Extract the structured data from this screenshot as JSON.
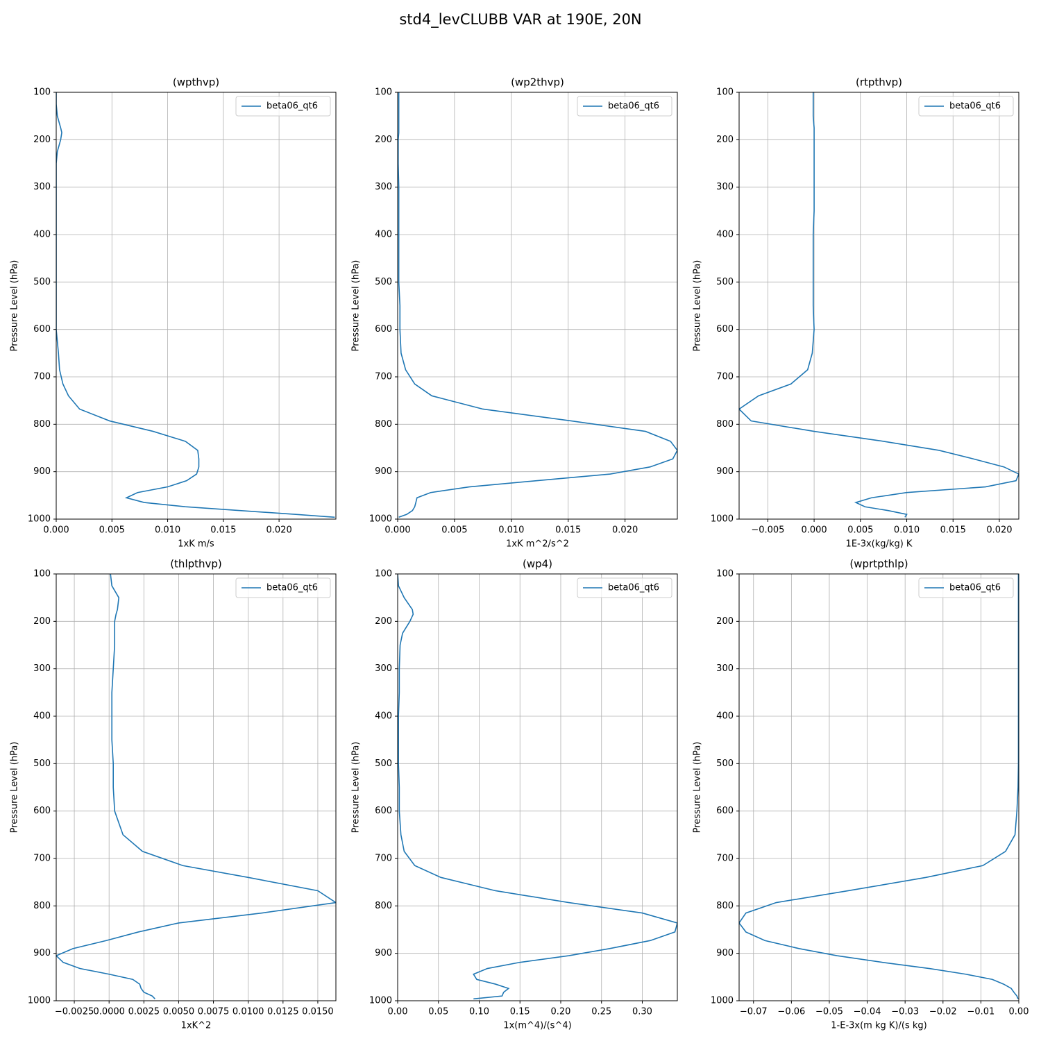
{
  "title": "std4_levCLUBB VAR at 190E, 20N",
  "chart_data": [
    {
      "type": "line",
      "title": "(wpthvp)",
      "x_label": "1xK m/s",
      "y_label": "Pressure Level (hPa)",
      "grid": true,
      "legend": "upper right",
      "y": [
        100,
        125,
        150,
        175,
        185,
        200,
        225,
        250,
        300,
        350,
        400,
        450,
        500,
        550,
        600,
        650,
        685,
        715,
        740,
        768,
        793,
        815,
        836,
        855,
        873,
        890,
        905,
        919,
        932,
        944,
        955,
        965,
        974,
        982,
        990,
        996
      ],
      "series": [
        {
          "name": "beta06_qt6",
          "color": "#1f77b4",
          "values": [
            0,
            0,
            0.0001,
            0.0004,
            0.0005,
            0.0004,
            0.0001,
            0,
            0,
            0,
            0,
            0,
            0,
            0,
            0,
            0.0002,
            0.0003,
            0.0006,
            0.0011,
            0.0021,
            0.0048,
            0.0087,
            0.0116,
            0.0127,
            0.0128,
            0.0128,
            0.0126,
            0.0117,
            0.01,
            0.0073,
            0.0063,
            0.0079,
            0.0116,
            0.0165,
            0.0215,
            0.025
          ]
        }
      ],
      "xlim": [
        0,
        0.0251
      ],
      "ylim": [
        1000,
        100
      ],
      "xticks": [
        {
          "value": 0,
          "label": "0.000"
        },
        {
          "value": 0.005,
          "label": "0.005"
        },
        {
          "value": 0.01,
          "label": "0.010"
        },
        {
          "value": 0.015,
          "label": "0.015"
        },
        {
          "value": 0.02,
          "label": "0.020"
        }
      ],
      "yticks": [
        100,
        200,
        300,
        400,
        500,
        600,
        700,
        800,
        900,
        1000
      ]
    },
    {
      "type": "line",
      "title": "(wp2thvp)",
      "x_label": "1xK m^2/s^2",
      "y_label": "Pressure Level (hPa)",
      "grid": true,
      "legend": "upper right",
      "y": [
        100,
        125,
        150,
        175,
        185,
        200,
        225,
        250,
        300,
        350,
        400,
        450,
        500,
        550,
        600,
        650,
        685,
        715,
        740,
        768,
        793,
        815,
        836,
        855,
        873,
        890,
        905,
        919,
        932,
        944,
        955,
        965,
        974,
        982,
        990,
        996
      ],
      "series": [
        {
          "name": "beta06_qt6",
          "color": "#1f77b4",
          "values": [
            0.0001,
            0.0001,
            0.0001,
            0.0001,
            0.0001,
            5e-05,
            5e-05,
            5e-05,
            0.0001,
            0.0001,
            0.0001,
            0.0001,
            0.0001,
            0.0002,
            0.0002,
            0.0003,
            0.0007,
            0.0015,
            0.003,
            0.0075,
            0.0153,
            0.0218,
            0.024,
            0.0246,
            0.0242,
            0.0222,
            0.0187,
            0.0122,
            0.0063,
            0.0029,
            0.0017,
            0.0016,
            0.0015,
            0.0013,
            0.0008,
            0.0001
          ]
        }
      ],
      "xlim": [
        0,
        0.0246
      ],
      "ylim": [
        1000,
        100
      ],
      "xticks": [
        {
          "value": 0,
          "label": "0.000"
        },
        {
          "value": 0.005,
          "label": "0.005"
        },
        {
          "value": 0.01,
          "label": "0.010"
        },
        {
          "value": 0.015,
          "label": "0.015"
        },
        {
          "value": 0.02,
          "label": "0.020"
        }
      ],
      "yticks": [
        100,
        200,
        300,
        400,
        500,
        600,
        700,
        800,
        900,
        1000
      ]
    },
    {
      "type": "line",
      "title": "(rtpthvp)",
      "x_label": "1E-3x(kg/kg) K",
      "y_label": "Pressure Level (hPa)",
      "grid": true,
      "legend": "upper right",
      "y": [
        100,
        125,
        150,
        175,
        185,
        200,
        225,
        250,
        300,
        350,
        400,
        450,
        500,
        550,
        600,
        650,
        685,
        715,
        740,
        768,
        793,
        815,
        836,
        855,
        873,
        890,
        905,
        919,
        932,
        944,
        955,
        965,
        974,
        982,
        990,
        996
      ],
      "series": [
        {
          "name": "beta06_qt6",
          "color": "#1f77b4",
          "values": [
            -0.0001,
            -0.0001,
            -0.0001,
            0,
            0,
            0,
            0,
            0,
            0,
            0,
            -0.0001,
            -0.0001,
            -0.0001,
            -0.0001,
            0,
            -0.0002,
            -0.0007,
            -0.0025,
            -0.006,
            -0.0081,
            -0.0068,
            0,
            0.0075,
            0.0135,
            0.0172,
            0.0205,
            0.0221,
            0.0218,
            0.0185,
            0.01,
            0.0062,
            0.0045,
            0.0055,
            0.008,
            0.01,
            0.0098
          ]
        }
      ],
      "xlim": [
        -0.0081,
        0.0221
      ],
      "ylim": [
        1000,
        100
      ],
      "xticks": [
        {
          "value": -0.005,
          "label": "−0.005"
        },
        {
          "value": 0,
          "label": "0.000"
        },
        {
          "value": 0.005,
          "label": "0.005"
        },
        {
          "value": 0.01,
          "label": "0.010"
        },
        {
          "value": 0.015,
          "label": "0.015"
        },
        {
          "value": 0.02,
          "label": "0.020"
        }
      ],
      "yticks": [
        100,
        200,
        300,
        400,
        500,
        600,
        700,
        800,
        900,
        1000
      ]
    },
    {
      "type": "line",
      "title": "(thlpthvp)",
      "x_label": "1xK^2",
      "y_label": "Pressure Level (hPa)",
      "grid": true,
      "legend": "upper right",
      "y": [
        100,
        125,
        150,
        175,
        185,
        200,
        225,
        250,
        300,
        350,
        400,
        450,
        500,
        550,
        600,
        650,
        685,
        715,
        740,
        768,
        793,
        815,
        836,
        855,
        873,
        890,
        905,
        919,
        932,
        944,
        955,
        965,
        974,
        982,
        990,
        996
      ],
      "series": [
        {
          "name": "beta06_qt6",
          "color": "#1f77b4",
          "values": [
            0.0001,
            0.0002,
            0.0007,
            0.0006,
            0.0005,
            0.0004,
            0.0004,
            0.0004,
            0.0003,
            0.0002,
            0.0002,
            0.0002,
            0.0003,
            0.0003,
            0.0004,
            0.001,
            0.0024,
            0.0053,
            0.01,
            0.015,
            0.0163,
            0.011,
            0.005,
            0.0021,
            -0.0002,
            -0.0026,
            -0.0038,
            -0.0033,
            -0.0021,
            0,
            0.0017,
            0.0022,
            0.0023,
            0.0025,
            0.0031,
            0.0033
          ]
        }
      ],
      "xlim": [
        -0.0038,
        0.0163
      ],
      "ylim": [
        1000,
        100
      ],
      "xticks": [
        {
          "value": -0.0025,
          "label": "−0.0025"
        },
        {
          "value": 0,
          "label": "0.0000"
        },
        {
          "value": 0.0025,
          "label": "0.0025"
        },
        {
          "value": 0.005,
          "label": "0.0050"
        },
        {
          "value": 0.0075,
          "label": "0.0075"
        },
        {
          "value": 0.01,
          "label": "0.0100"
        },
        {
          "value": 0.0125,
          "label": "0.0125"
        },
        {
          "value": 0.015,
          "label": "0.0150"
        }
      ],
      "yticks": [
        100,
        200,
        300,
        400,
        500,
        600,
        700,
        800,
        900,
        1000
      ]
    },
    {
      "type": "line",
      "title": "(wp4)",
      "x_label": "1x(m^4)/(s^4)",
      "y_label": "Pressure Level (hPa)",
      "grid": true,
      "legend": "upper right",
      "y": [
        100,
        125,
        150,
        175,
        185,
        200,
        225,
        250,
        300,
        350,
        400,
        450,
        500,
        550,
        600,
        650,
        685,
        715,
        740,
        768,
        793,
        815,
        836,
        855,
        873,
        890,
        905,
        919,
        932,
        944,
        955,
        965,
        974,
        982,
        990,
        996
      ],
      "series": [
        {
          "name": "beta06_qt6",
          "color": "#1f77b4",
          "values": [
            0,
            0.001,
            0.008,
            0.018,
            0.019,
            0.015,
            0.006,
            0.003,
            0.002,
            0.002,
            0.001,
            0.001,
            0.001,
            0.002,
            0.002,
            0.004,
            0.008,
            0.021,
            0.053,
            0.12,
            0.21,
            0.3,
            0.343,
            0.34,
            0.31,
            0.26,
            0.21,
            0.15,
            0.11,
            0.093,
            0.097,
            0.12,
            0.136,
            0.13,
            0.128,
            0.093
          ]
        }
      ],
      "xlim": [
        0,
        0.343
      ],
      "ylim": [
        1000,
        100
      ],
      "xticks": [
        {
          "value": 0,
          "label": "0.00"
        },
        {
          "value": 0.05,
          "label": "0.05"
        },
        {
          "value": 0.1,
          "label": "0.10"
        },
        {
          "value": 0.15,
          "label": "0.15"
        },
        {
          "value": 0.2,
          "label": "0.20"
        },
        {
          "value": 0.25,
          "label": "0.25"
        },
        {
          "value": 0.3,
          "label": "0.30"
        }
      ],
      "yticks": [
        100,
        200,
        300,
        400,
        500,
        600,
        700,
        800,
        900,
        1000
      ]
    },
    {
      "type": "line",
      "title": "(wprtpthlp)",
      "x_label": "1-E-3x(m kg K)/(s kg)",
      "y_label": "Pressure Level (hPa)",
      "grid": true,
      "legend": "upper right",
      "y": [
        100,
        125,
        150,
        175,
        185,
        200,
        225,
        250,
        300,
        350,
        400,
        450,
        500,
        550,
        600,
        650,
        685,
        715,
        740,
        768,
        793,
        815,
        836,
        855,
        873,
        890,
        905,
        919,
        932,
        944,
        955,
        965,
        974,
        982,
        990,
        996
      ],
      "series": [
        {
          "name": "beta06_qt6",
          "color": "#1f77b4",
          "values": [
            -0.0001,
            -0.0001,
            -0.0001,
            -0.0001,
            -0.0001,
            -0.0001,
            -0.0001,
            -0.0001,
            -0.0001,
            -0.0001,
            -0.0001,
            -0.0001,
            -0.0001,
            -0.0002,
            -0.0005,
            -0.001,
            -0.0035,
            -0.0095,
            -0.0245,
            -0.045,
            -0.064,
            -0.072,
            -0.0738,
            -0.072,
            -0.067,
            -0.058,
            -0.048,
            -0.036,
            -0.0236,
            -0.014,
            -0.007,
            -0.004,
            -0.002,
            -0.0013,
            -0.0005,
            -0.0002
          ]
        }
      ],
      "xlim": [
        -0.0738,
        0
      ],
      "ylim": [
        1000,
        100
      ],
      "xticks": [
        {
          "value": -0.07,
          "label": "−0.07"
        },
        {
          "value": -0.06,
          "label": "−0.06"
        },
        {
          "value": -0.05,
          "label": "−0.05"
        },
        {
          "value": -0.04,
          "label": "−0.04"
        },
        {
          "value": -0.03,
          "label": "−0.03"
        },
        {
          "value": -0.02,
          "label": "−0.02"
        },
        {
          "value": -0.01,
          "label": "−0.01"
        },
        {
          "value": 0,
          "label": "0.00"
        }
      ],
      "yticks": [
        100,
        200,
        300,
        400,
        500,
        600,
        700,
        800,
        900,
        1000
      ]
    }
  ]
}
